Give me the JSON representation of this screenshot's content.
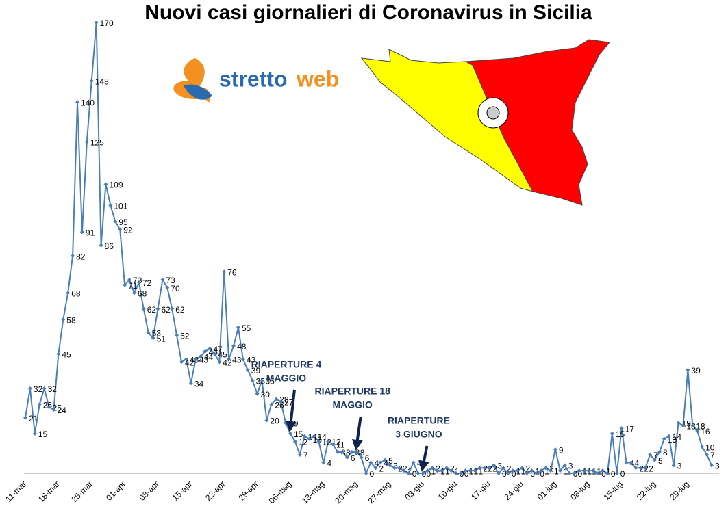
{
  "title": "Nuovi casi giornalieri di Coronavirus in Sicilia",
  "logo": {
    "part1": "stretto",
    "part2": "web"
  },
  "chart_data": {
    "type": "line",
    "color": "#4a7ebb",
    "categories": [
      "11-mar",
      null,
      null,
      null,
      null,
      null,
      null,
      "18-mar",
      null,
      null,
      null,
      null,
      null,
      null,
      "25-mar",
      null,
      null,
      null,
      null,
      null,
      null,
      "01-apr",
      null,
      null,
      null,
      null,
      null,
      null,
      "08-apr",
      null,
      null,
      null,
      null,
      null,
      null,
      "15-apr",
      null,
      null,
      null,
      null,
      null,
      null,
      "22-apr",
      null,
      null,
      null,
      null,
      null,
      null,
      "29-apr",
      null,
      null,
      null,
      null,
      null,
      null,
      "06-mag",
      null,
      null,
      null,
      null,
      null,
      null,
      "13-mag",
      null,
      null,
      null,
      null,
      null,
      null,
      "20-mag",
      null,
      null,
      null,
      null,
      null,
      null,
      "27-mag",
      null,
      null,
      null,
      null,
      null,
      null,
      "03-giu",
      null,
      null,
      null,
      null,
      null,
      null,
      "10-giu",
      null,
      null,
      null,
      null,
      null,
      null,
      "17-giu",
      null,
      null,
      null,
      null,
      null,
      null,
      "24-giu",
      null,
      null,
      null,
      null,
      null,
      null,
      "01-lug",
      null,
      null,
      null,
      null,
      null,
      null,
      "08-lug",
      null,
      null,
      null,
      null,
      null,
      null,
      "15-lug",
      null,
      null,
      null,
      null,
      null,
      null,
      "22-lug",
      null,
      null,
      null,
      null,
      null,
      null,
      "29-lug",
      null,
      null,
      null,
      null,
      null
    ],
    "values": [
      21,
      32,
      15,
      26,
      32,
      25,
      24,
      45,
      58,
      68,
      82,
      140,
      91,
      125,
      148,
      170,
      86,
      109,
      101,
      95,
      92,
      71,
      73,
      68,
      72,
      62,
      53,
      51,
      62,
      73,
      70,
      62,
      52,
      42,
      43,
      34,
      43,
      44,
      46,
      47,
      45,
      42,
      76,
      43,
      48,
      55,
      43,
      39,
      35,
      30,
      35,
      20,
      26,
      28,
      27,
      19,
      15,
      12,
      7,
      14,
      13,
      14,
      12,
      4,
      12,
      11,
      8,
      8,
      6,
      8,
      8,
      6,
      0,
      4,
      2,
      4,
      5,
      3,
      2,
      2,
      1,
      0,
      4,
      0,
      0,
      1,
      2,
      1,
      1,
      2,
      1,
      0,
      0,
      1,
      1,
      1,
      2,
      2,
      2,
      3,
      0,
      2,
      0,
      1,
      1,
      2,
      0,
      1,
      0,
      1,
      2,
      1,
      9,
      1,
      3,
      0,
      0,
      1,
      1,
      1,
      1,
      0,
      1,
      0,
      15,
      0,
      17,
      4,
      4,
      2,
      2,
      2,
      7,
      5,
      8,
      13,
      14,
      3,
      19,
      18,
      39,
      18,
      16,
      10,
      7,
      3
    ],
    "annotations": [
      {
        "lines": [
          "RIAPERTURE 4",
          "MAGGIO"
        ],
        "at": 56
      },
      {
        "lines": [
          "RIAPERTURE 18",
          "MAGGIO"
        ],
        "at": 70
      },
      {
        "lines": [
          "RIAPERTURE",
          "3 GIUGNO"
        ],
        "at": 84
      }
    ]
  }
}
